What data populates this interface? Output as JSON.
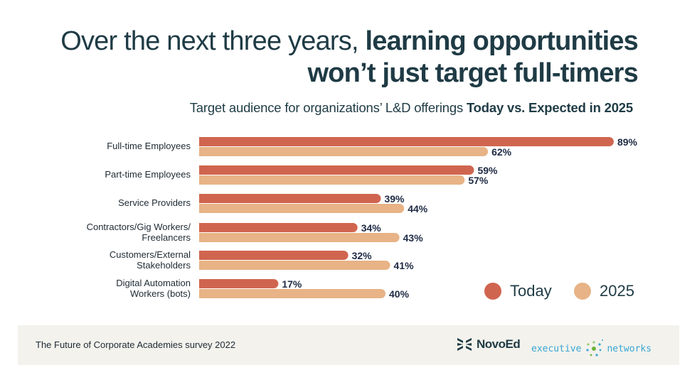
{
  "header": {
    "title_line1_regular": "Over the next three years, ",
    "title_line1_bold": "learning opportunities",
    "title_line2_bold": "won’t just target full-timers",
    "subtitle_regular": "Target audience for organizations’ L&D offerings ",
    "subtitle_bold": "Today vs. Expected in 2025"
  },
  "chart_data": {
    "type": "bar",
    "orientation": "horizontal",
    "categories": [
      [
        "Full-time Employees"
      ],
      [
        "Part-time Employees"
      ],
      [
        "Service Providers"
      ],
      [
        "Contractors/Gig Workers/",
        "Freelancers"
      ],
      [
        "Customers/External",
        "Stakeholders"
      ],
      [
        "Digital Automation",
        "Workers (bots)"
      ]
    ],
    "series": [
      {
        "name": "Today",
        "color": "#d0654f",
        "values": [
          89,
          59,
          39,
          34,
          32,
          17
        ]
      },
      {
        "name": "2025",
        "color": "#e8b386",
        "values": [
          62,
          57,
          44,
          43,
          41,
          40
        ]
      }
    ],
    "unit": "%",
    "xlim": [
      0,
      100
    ],
    "grid": false,
    "legend": "bottom-right"
  },
  "footer": {
    "source": "The Future of Corporate Academies survey 2022",
    "logo1": "NovoEd",
    "logo2_left": "executive",
    "logo2_right": "networks"
  }
}
